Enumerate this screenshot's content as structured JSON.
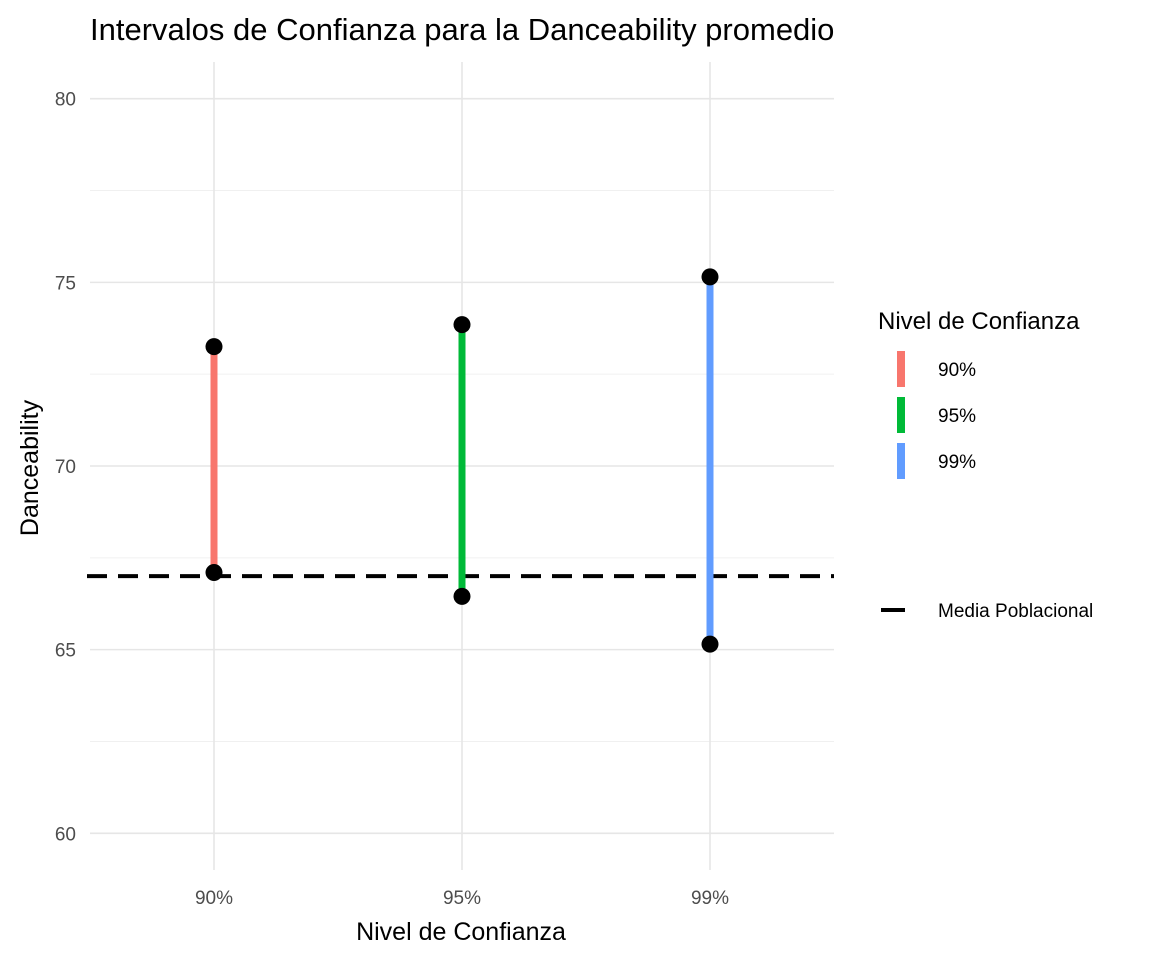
{
  "chart_data": {
    "type": "errorbar",
    "title": "Intervalos de Confianza para la Danceability promedio",
    "xlabel": "Nivel de Confianza",
    "ylabel": "Danceability",
    "categories": [
      "90%",
      "95%",
      "99%"
    ],
    "intervals": [
      {
        "category": "90%",
        "lower": 67.1,
        "upper": 73.25,
        "color": "#F8766D"
      },
      {
        "category": "95%",
        "lower": 66.45,
        "upper": 73.85,
        "color": "#00BA38"
      },
      {
        "category": "99%",
        "lower": 65.15,
        "upper": 75.15,
        "color": "#619CFF"
      }
    ],
    "reference_line": {
      "label": "Media Poblacional",
      "value": 67.0,
      "style": "dashed",
      "color": "#000000"
    },
    "ylim": [
      59,
      81
    ],
    "yticks": [
      60,
      65,
      70,
      75,
      80
    ],
    "grid": true,
    "legend": {
      "title": "Nivel de Confianza",
      "position": "right",
      "entries": [
        "90%",
        "95%",
        "99%"
      ]
    }
  }
}
